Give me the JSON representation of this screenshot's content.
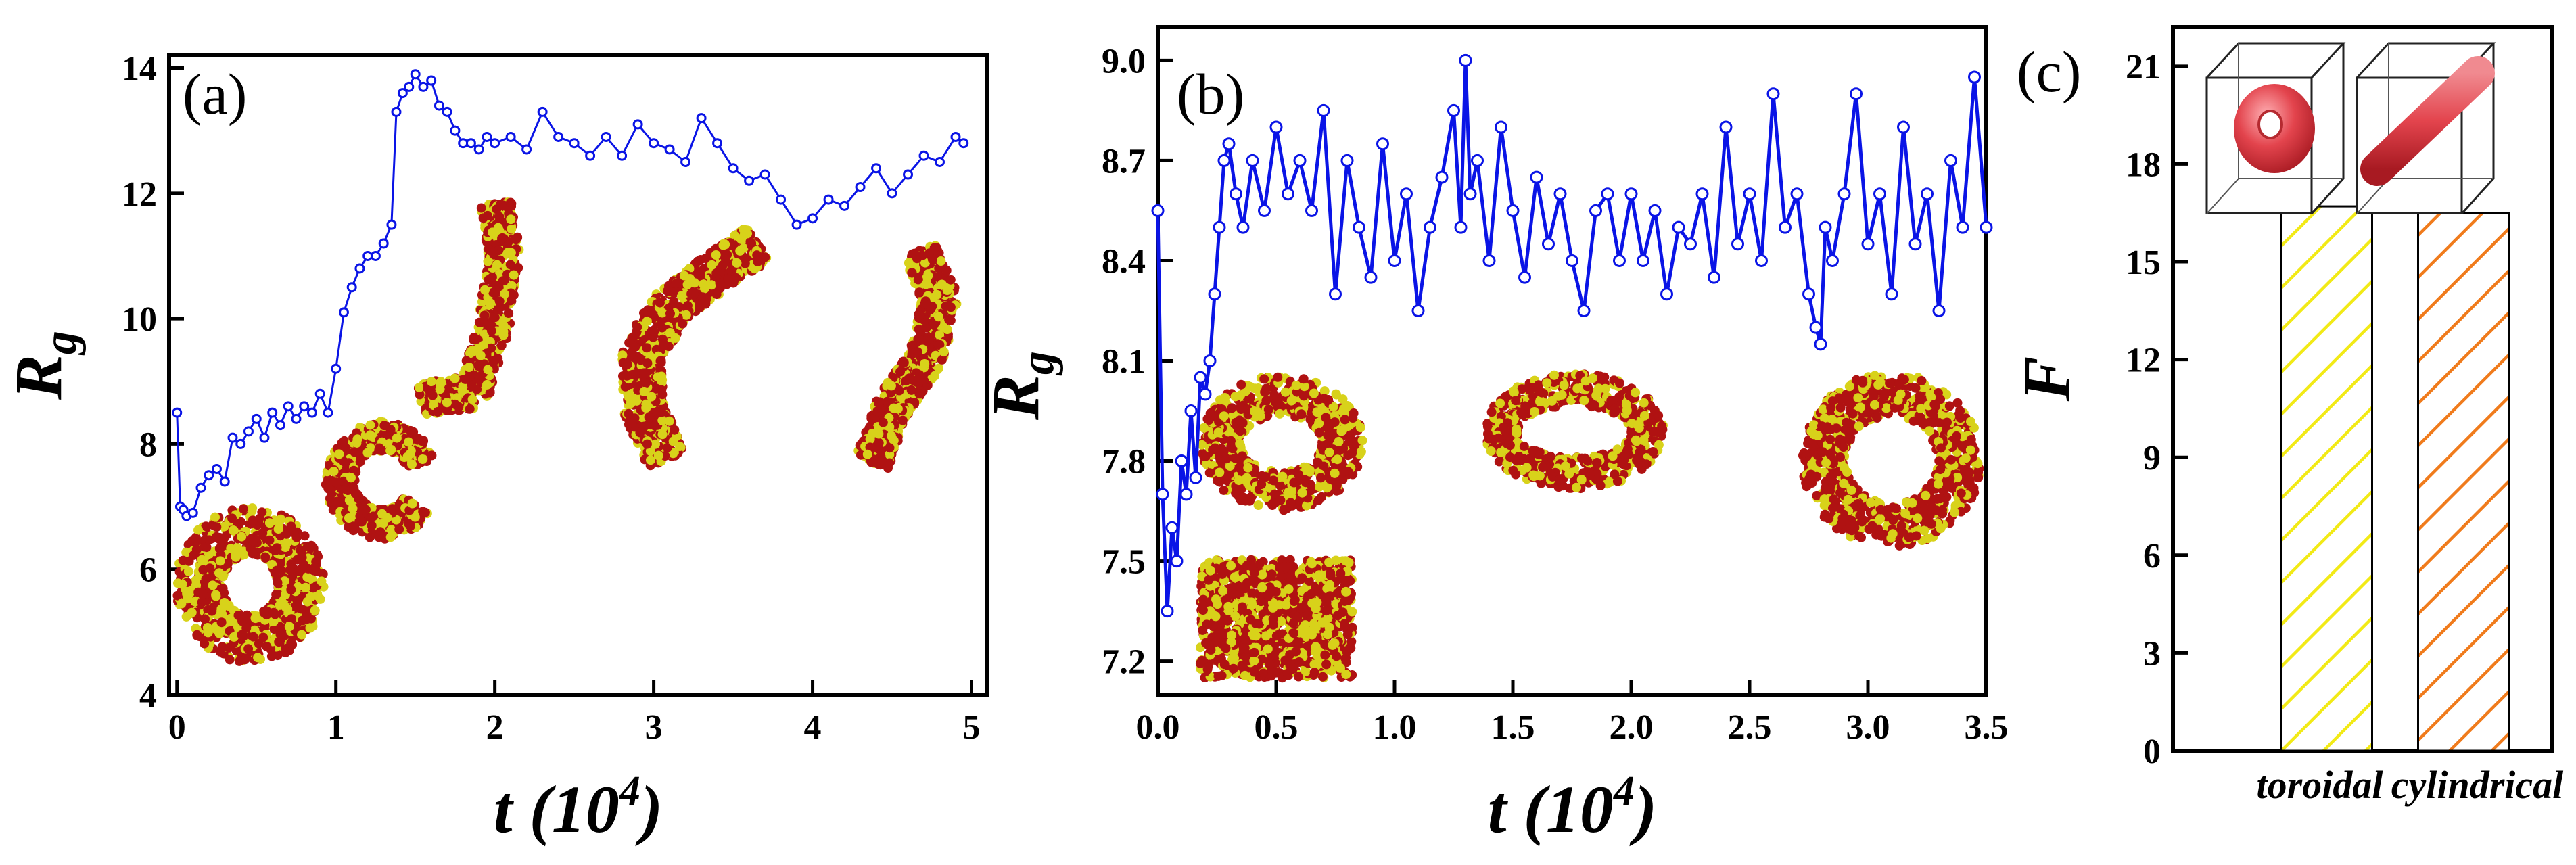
{
  "colors": {
    "series_line": "#0a14e6",
    "marker_face": "#ffffff",
    "bead_red": "#b01212",
    "bead_yellow": "#d8d21a",
    "toroidal_hatch": "#f2ea16",
    "cylindrical_hatch": "#f07b1c",
    "tube_red": "#e3444d"
  },
  "chart_data": [
    {
      "id": "a",
      "type": "line",
      "panel_label": "(a)",
      "xlabel_main": "t (10",
      "xlabel_sup": "4",
      "xlabel_tail": ")",
      "ylabel_main": "R",
      "ylabel_sub": "g",
      "xlim": [
        -0.05,
        5.1
      ],
      "ylim": [
        4,
        14.2
      ],
      "xticks": [
        0,
        1,
        2,
        3,
        4,
        5
      ],
      "xtick_labels": [
        "0",
        "1",
        "2",
        "3",
        "4",
        "5"
      ],
      "yticks": [
        4,
        6,
        8,
        10,
        12,
        14
      ],
      "ytick_labels": [
        "4",
        "6",
        "8",
        "10",
        "12",
        "14"
      ],
      "series": [
        {
          "name": "Rg",
          "x": [
            0.0,
            0.02,
            0.04,
            0.06,
            0.1,
            0.15,
            0.2,
            0.25,
            0.3,
            0.35,
            0.4,
            0.45,
            0.5,
            0.55,
            0.6,
            0.65,
            0.7,
            0.75,
            0.8,
            0.85,
            0.9,
            0.95,
            1.0,
            1.05,
            1.1,
            1.15,
            1.2,
            1.25,
            1.3,
            1.35,
            1.38,
            1.42,
            1.46,
            1.5,
            1.55,
            1.6,
            1.65,
            1.7,
            1.75,
            1.8,
            1.85,
            1.9,
            1.95,
            2.0,
            2.1,
            2.2,
            2.3,
            2.4,
            2.5,
            2.6,
            2.7,
            2.8,
            2.9,
            3.0,
            3.1,
            3.2,
            3.3,
            3.4,
            3.5,
            3.6,
            3.7,
            3.8,
            3.9,
            4.0,
            4.1,
            4.2,
            4.3,
            4.4,
            4.5,
            4.6,
            4.7,
            4.8,
            4.9,
            4.95
          ],
          "y": [
            8.5,
            7.0,
            6.95,
            6.85,
            6.9,
            7.3,
            7.5,
            7.6,
            7.4,
            8.1,
            8.0,
            8.2,
            8.4,
            8.1,
            8.5,
            8.3,
            8.6,
            8.4,
            8.6,
            8.5,
            8.8,
            8.5,
            9.2,
            10.1,
            10.5,
            10.8,
            11.0,
            11.0,
            11.2,
            11.5,
            13.3,
            13.6,
            13.7,
            13.9,
            13.7,
            13.8,
            13.4,
            13.3,
            13.0,
            12.8,
            12.8,
            12.7,
            12.9,
            12.8,
            12.9,
            12.7,
            13.3,
            12.9,
            12.8,
            12.6,
            12.9,
            12.6,
            13.1,
            12.8,
            12.7,
            12.5,
            13.2,
            12.8,
            12.4,
            12.2,
            12.3,
            11.9,
            11.5,
            11.6,
            11.9,
            11.8,
            12.1,
            12.4,
            12.0,
            12.3,
            12.6,
            12.5,
            12.9,
            12.8
          ]
        }
      ]
    },
    {
      "id": "b",
      "type": "line",
      "panel_label": "(b)",
      "xlabel_main": "t (10",
      "xlabel_sup": "4",
      "xlabel_tail": ")",
      "ylabel_main": "R",
      "ylabel_sub": "g",
      "xlim": [
        0,
        3.5
      ],
      "ylim": [
        7.1,
        9.1
      ],
      "xticks": [
        0.0,
        0.5,
        1.0,
        1.5,
        2.0,
        2.5,
        3.0,
        3.5
      ],
      "xtick_labels": [
        "0.0",
        "0.5",
        "1.0",
        "1.5",
        "2.0",
        "2.5",
        "3.0",
        "3.5"
      ],
      "yticks": [
        7.2,
        7.5,
        7.8,
        8.1,
        8.4,
        8.7,
        9.0
      ],
      "ytick_labels": [
        "7.2",
        "7.5",
        "7.8",
        "8.1",
        "8.4",
        "8.7",
        "9.0"
      ],
      "series": [
        {
          "name": "Rg",
          "x": [
            0.0,
            0.02,
            0.04,
            0.06,
            0.08,
            0.1,
            0.12,
            0.14,
            0.16,
            0.18,
            0.2,
            0.22,
            0.24,
            0.26,
            0.28,
            0.3,
            0.33,
            0.36,
            0.4,
            0.45,
            0.5,
            0.55,
            0.6,
            0.65,
            0.7,
            0.75,
            0.8,
            0.85,
            0.9,
            0.95,
            1.0,
            1.05,
            1.1,
            1.15,
            1.2,
            1.25,
            1.28,
            1.3,
            1.32,
            1.35,
            1.4,
            1.45,
            1.5,
            1.55,
            1.6,
            1.65,
            1.7,
            1.75,
            1.8,
            1.85,
            1.9,
            1.95,
            2.0,
            2.05,
            2.1,
            2.15,
            2.2,
            2.25,
            2.3,
            2.35,
            2.4,
            2.45,
            2.5,
            2.55,
            2.6,
            2.65,
            2.7,
            2.75,
            2.78,
            2.8,
            2.82,
            2.85,
            2.9,
            2.95,
            3.0,
            3.05,
            3.1,
            3.15,
            3.2,
            3.25,
            3.3,
            3.35,
            3.4,
            3.45,
            3.5
          ],
          "y": [
            8.55,
            7.7,
            7.35,
            7.6,
            7.5,
            7.8,
            7.7,
            7.95,
            7.75,
            8.05,
            8.0,
            8.1,
            8.3,
            8.5,
            8.7,
            8.75,
            8.6,
            8.5,
            8.7,
            8.55,
            8.8,
            8.6,
            8.7,
            8.55,
            8.85,
            8.3,
            8.7,
            8.5,
            8.35,
            8.75,
            8.4,
            8.6,
            8.25,
            8.5,
            8.65,
            8.85,
            8.5,
            9.0,
            8.6,
            8.7,
            8.4,
            8.8,
            8.55,
            8.35,
            8.65,
            8.45,
            8.6,
            8.4,
            8.25,
            8.55,
            8.6,
            8.4,
            8.6,
            8.4,
            8.55,
            8.3,
            8.5,
            8.45,
            8.6,
            8.35,
            8.8,
            8.45,
            8.6,
            8.4,
            8.9,
            8.5,
            8.6,
            8.3,
            8.2,
            8.15,
            8.5,
            8.4,
            8.6,
            8.9,
            8.45,
            8.6,
            8.3,
            8.8,
            8.45,
            8.6,
            8.25,
            8.7,
            8.5,
            8.95,
            8.5
          ]
        }
      ]
    },
    {
      "id": "c",
      "type": "bar",
      "panel_label": "(c)",
      "ylabel_main": "F",
      "categories": [
        "toroidal",
        "cylindrical"
      ],
      "values": [
        16.7,
        16.5
      ],
      "ylim": [
        0,
        22.2
      ],
      "yticks": [
        0,
        3,
        6,
        9,
        12,
        15,
        18,
        21
      ],
      "ytick_labels": [
        "0",
        "3",
        "6",
        "9",
        "12",
        "15",
        "18",
        "21"
      ]
    }
  ]
}
